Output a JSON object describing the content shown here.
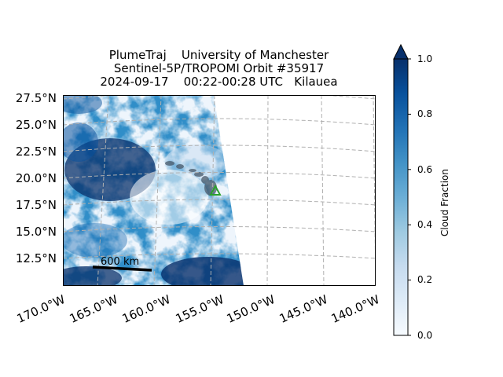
{
  "title": {
    "line1": "PlumeTraj    University of Manchester",
    "line2": "Sentinel-5P/TROPOMI Orbit #35917",
    "line3": "2024-09-17    00:22-00:28 UTC   Kilauea"
  },
  "map": {
    "lat_labels": [
      "27.5°N",
      "25.0°N",
      "22.5°N",
      "20.0°N",
      "17.5°N",
      "15.0°N",
      "12.5°N"
    ],
    "lon_labels": [
      "170.0°W",
      "165.0°W",
      "160.0°W",
      "155.0°W",
      "150.0°W",
      "145.0°W",
      "140.0°W"
    ],
    "scale_bar_label": "600 km",
    "volcano_marker": "triangle-marker",
    "colors": {
      "marker": "#2ca02c",
      "gridline": "#b0b0b0"
    }
  },
  "colorbar": {
    "label": "Cloud Fraction",
    "ticks": [
      "0.0",
      "0.2",
      "0.4",
      "0.6",
      "0.8",
      "1.0"
    ],
    "colormap": "Blues",
    "extend": "max"
  },
  "chart_data": {
    "type": "heatmap",
    "title": "PlumeTraj    University of Manchester / Sentinel-5P/TROPOMI Orbit #35917 / 2024-09-17    00:22-00:28 UTC   Kilauea",
    "variable": "Cloud Fraction",
    "clim": [
      0.0,
      1.0
    ],
    "lon_range": [
      -170.0,
      -140.0
    ],
    "lat_range": [
      10.0,
      27.5
    ],
    "volcano": {
      "name": "Kilauea",
      "lon": -155.3,
      "lat": 19.4
    }
  }
}
